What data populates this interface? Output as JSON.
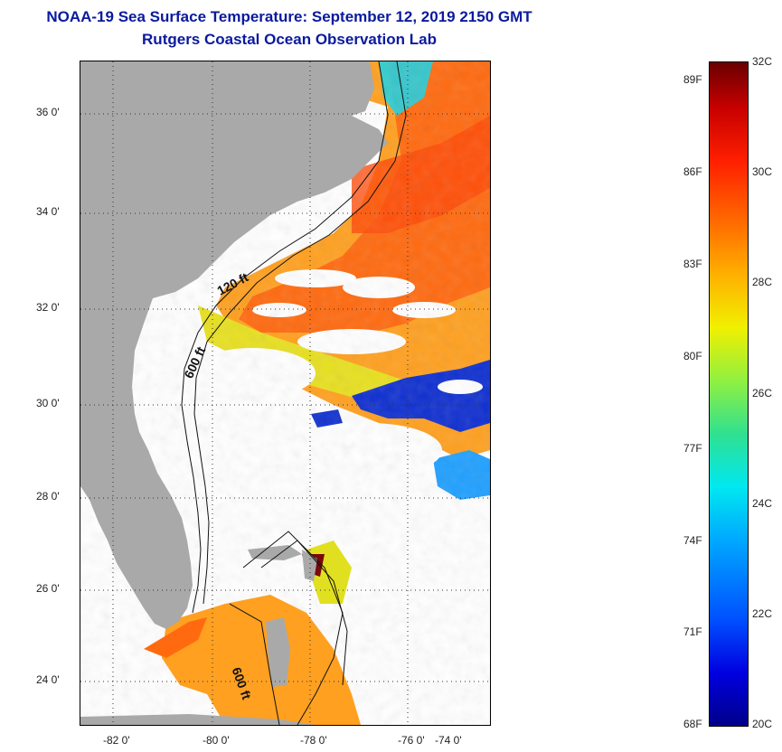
{
  "title": {
    "line1": "NOAA-19 Sea Surface Temperature:  September 12, 2019 2150 GMT",
    "line2": "Rutgers Coastal Ocean Observation Lab"
  },
  "map": {
    "lat_labels": [
      "36 0'",
      "34 0'",
      "32 0'",
      "30 0'",
      "28 0'",
      "26 0'",
      "24 0'"
    ],
    "lon_labels": [
      "-82 0'",
      "-80 0'",
      "-78 0'",
      "-76 0'",
      "-74 0'"
    ],
    "isobath_labels": [
      "120 ft",
      "600 ft",
      "600 ft"
    ],
    "colors": {
      "land": "#a9a9a9",
      "cloud": "#ffffff",
      "gulf_stream": "#ff6a10",
      "warm_shelf": "#ffa020",
      "cool_water": "#1030d0"
    }
  },
  "colorbar": {
    "f_labels": [
      "89F",
      "86F",
      "83F",
      "80F",
      "77F",
      "74F",
      "71F",
      "68F"
    ],
    "c_labels": [
      "32C",
      "30C",
      "28C",
      "26C",
      "24C",
      "22C",
      "20C"
    ],
    "range_c": [
      20,
      32
    ],
    "range_f": [
      68,
      89.6
    ]
  }
}
